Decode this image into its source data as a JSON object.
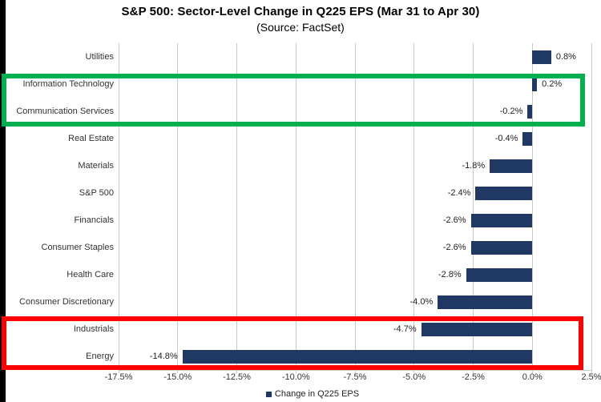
{
  "page": {
    "background": "#FFFFFF"
  },
  "chart_data": {
    "type": "bar",
    "orientation": "horizontal",
    "title": "S&P 500: Sector-Level Change in Q225 EPS (Mar 31 to Apr 30)",
    "subtitle": "(Source: FactSet)",
    "categories": [
      "Utilities",
      "Information Technology",
      "Communication Services",
      "Real Estate",
      "Materials",
      "S&P 500",
      "Financials",
      "Consumer Staples",
      "Health Care",
      "Consumer Discretionary",
      "Industrials",
      "Energy"
    ],
    "values": [
      0.8,
      0.2,
      -0.2,
      -0.4,
      -1.8,
      -2.4,
      -2.6,
      -2.6,
      -2.8,
      -4.0,
      -4.7,
      -14.8
    ],
    "data_labels": [
      "0.8%",
      "0.2%",
      "-0.2%",
      "-0.4%",
      "-1.8%",
      "-2.4%",
      "-2.6%",
      "-2.6%",
      "-2.8%",
      "-4.0%",
      "-4.7%",
      "-14.8%"
    ],
    "xlabel": "",
    "ylabel": "",
    "xlim": [
      -17.5,
      2.5
    ],
    "x_tick_values": [
      -17.5,
      -15,
      -12.5,
      -10,
      -7.5,
      -5,
      -2.5,
      0,
      2.5
    ],
    "x_tick_labels": [
      "-17.5%",
      "-15.0%",
      "-12.5%",
      "-10.0%",
      "-7.5%",
      "-5.0%",
      "-2.5%",
      "0.0%",
      "2.5%"
    ],
    "grid": true,
    "bar_color": "#1F3864",
    "gridline_color": "#C9C9C9",
    "legend": {
      "label": "Change in Q225 EPS",
      "position": "bottom",
      "marker_color": "#1F3864"
    }
  },
  "annotations": {
    "green_box": {
      "color": "#00B050",
      "highlighted_rows": [
        "Information Technology",
        "Communication Services"
      ]
    },
    "red_box": {
      "color": "#FF0000",
      "highlighted_rows": [
        "Industrials",
        "Energy"
      ]
    }
  }
}
